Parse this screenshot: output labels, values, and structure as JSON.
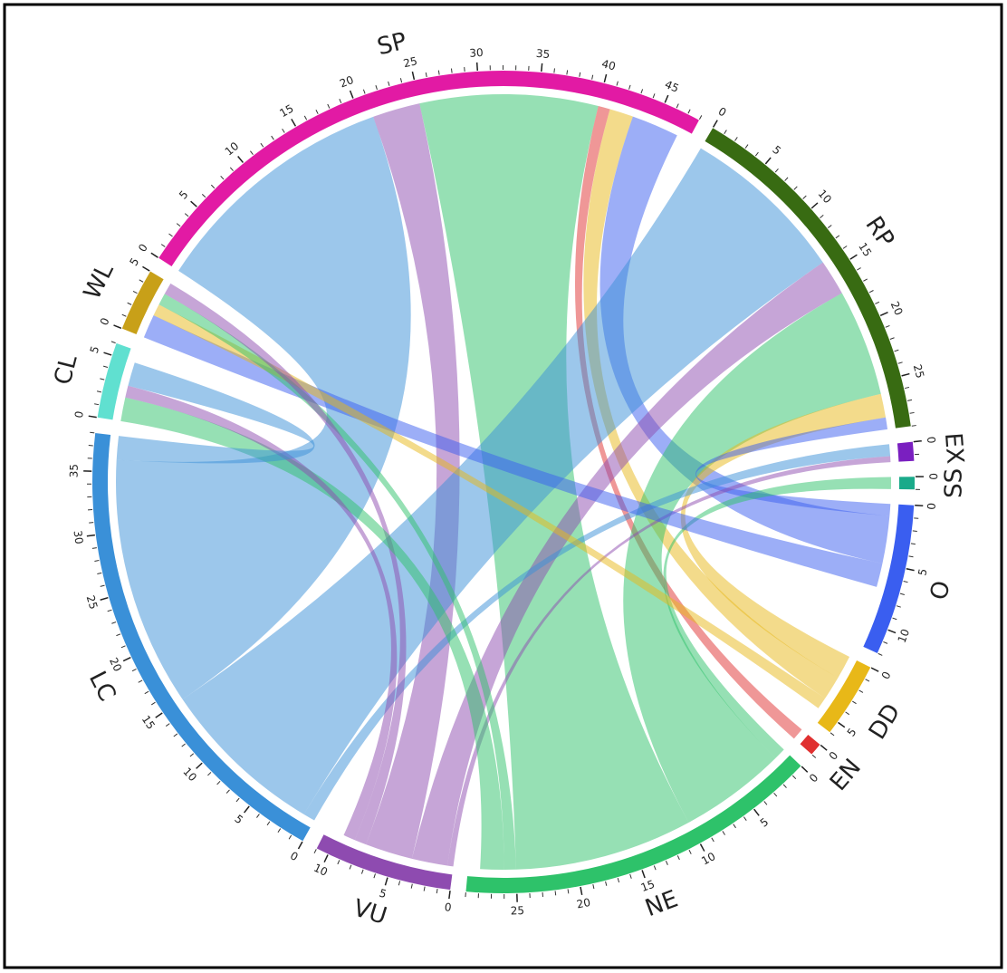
{
  "chart_data": {
    "type": "chord",
    "sectors": [
      {
        "name": "SP",
        "color": "#e21aa4",
        "size": 48,
        "ticks": [
          0,
          5,
          10,
          15,
          20,
          25,
          30,
          35,
          40,
          45
        ]
      },
      {
        "name": "RP",
        "color": "#386b12",
        "size": 29,
        "ticks": [
          0,
          5,
          10,
          15,
          20,
          25
        ]
      },
      {
        "name": "EX",
        "color": "#7a1fc0",
        "size": 1.5,
        "ticks": [
          0
        ]
      },
      {
        "name": "SS",
        "color": "#1aaa8a",
        "size": 1,
        "ticks": [
          0
        ]
      },
      {
        "name": "O",
        "color": "#3a5ef0",
        "size": 12,
        "ticks": [
          0,
          5,
          10
        ]
      },
      {
        "name": "DD",
        "color": "#e8b818",
        "size": 6,
        "ticks": [
          0,
          5
        ]
      },
      {
        "name": "EN",
        "color": "#e03030",
        "size": 1,
        "ticks": [
          0
        ]
      },
      {
        "name": "NE",
        "color": "#2ec26a",
        "size": 29,
        "ticks": [
          0,
          5,
          10,
          15,
          20,
          25
        ]
      },
      {
        "name": "VU",
        "color": "#8e4bb0",
        "size": 11,
        "ticks": [
          0,
          5,
          10
        ]
      },
      {
        "name": "LC",
        "color": "#3a90d8",
        "size": 38,
        "ticks": [
          0,
          5,
          10,
          15,
          20,
          25,
          30,
          35
        ]
      },
      {
        "name": "CL",
        "color": "#60e0d0",
        "size": 6,
        "ticks": [
          0,
          5
        ]
      },
      {
        "name": "WL",
        "color": "#c8a018",
        "size": 5,
        "ticks": [
          0,
          5
        ]
      }
    ],
    "minor_tick": 1,
    "links": [
      {
        "source": "SP",
        "target": "LC",
        "value": 21
      },
      {
        "source": "SP",
        "target": "VU",
        "value": 4
      },
      {
        "source": "SP",
        "target": "NE",
        "value": 15
      },
      {
        "source": "SP",
        "target": "EN",
        "value": 1
      },
      {
        "source": "SP",
        "target": "DD",
        "value": 2
      },
      {
        "source": "SP",
        "target": "O",
        "value": 4
      },
      {
        "source": "RP",
        "target": "LC",
        "value": 14
      },
      {
        "source": "RP",
        "target": "VU",
        "value": 3
      },
      {
        "source": "RP",
        "target": "NE",
        "value": 9
      },
      {
        "source": "RP",
        "target": "DD",
        "value": 2
      },
      {
        "source": "RP",
        "target": "O",
        "value": 1
      },
      {
        "source": "EX",
        "target": "LC",
        "value": 1
      },
      {
        "source": "EX",
        "target": "VU",
        "value": 0.5
      },
      {
        "source": "SS",
        "target": "NE",
        "value": 1
      },
      {
        "source": "WL",
        "target": "O",
        "value": 2
      },
      {
        "source": "WL",
        "target": "DD",
        "value": 1
      },
      {
        "source": "WL",
        "target": "NE",
        "value": 1
      },
      {
        "source": "WL",
        "target": "VU",
        "value": 1
      },
      {
        "source": "CL",
        "target": "NE",
        "value": 2
      },
      {
        "source": "CL",
        "target": "VU",
        "value": 1
      },
      {
        "source": "CL",
        "target": "LC",
        "value": 2
      }
    ]
  }
}
